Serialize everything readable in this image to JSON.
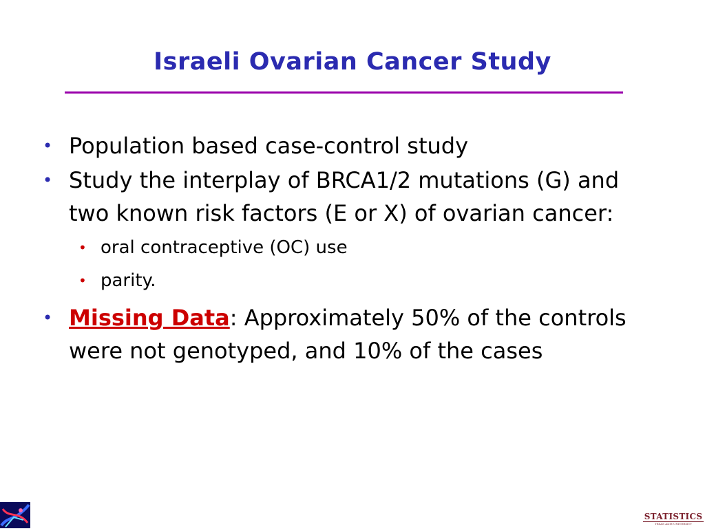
{
  "slide": {
    "title": "Israeli Ovarian Cancer Study",
    "bullets": [
      {
        "text": "Population based case-control study"
      },
      {
        "text": "Study the interplay of BRCA1/2 mutations (G) and two known risk factors (E or X) of ovarian cancer:"
      },
      {
        "sub": [
          "oral contraceptive (OC) use",
          "parity."
        ]
      },
      {
        "emphasis": "Missing Data",
        "text": ": Approximately 50% of the controls were not genotyped, and 10% of the cases"
      }
    ],
    "bullet_glyph": "•"
  },
  "footer": {
    "logo_right_main": "STATISTICS",
    "logo_right_sub": "TEXAS A&M UNIVERSITY"
  },
  "colors": {
    "title": "#2b2bb0",
    "rule": "#9900aa",
    "emphasis": "#cc0000"
  }
}
